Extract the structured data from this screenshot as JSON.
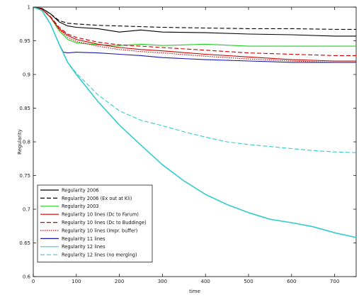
{
  "chart_data": {
    "type": "line",
    "title": "",
    "xlabel": "time",
    "ylabel": "Regularity",
    "xlim": [
      0,
      750
    ],
    "ylim": [
      0.6,
      1.0
    ],
    "xticks": [
      "0",
      "100",
      "200",
      "300",
      "400",
      "500",
      "600",
      "700"
    ],
    "yticks": [
      "0.6",
      "0.65",
      "0.7",
      "0.75",
      "0.8",
      "0.85",
      "0.9",
      "0.95",
      "1"
    ],
    "grid": false,
    "legend_position": "bottom-left",
    "series": [
      {
        "name": "Regularity 2006",
        "color": "#000000",
        "dash": "solid",
        "x": [
          0,
          20,
          40,
          60,
          80,
          100,
          150,
          200,
          250,
          300,
          400,
          500,
          600,
          700,
          750
        ],
        "y": [
          1.0,
          0.998,
          0.99,
          0.978,
          0.972,
          0.97,
          0.968,
          0.963,
          0.966,
          0.963,
          0.962,
          0.96,
          0.959,
          0.957,
          0.957
        ]
      },
      {
        "name": "Regularity 2006 (Ex out at Kli)",
        "color": "#000000",
        "dash": "dashed",
        "x": [
          0,
          20,
          40,
          60,
          80,
          100,
          150,
          200,
          250,
          300,
          400,
          500,
          600,
          700,
          750
        ],
        "y": [
          1.0,
          0.998,
          0.99,
          0.98,
          0.976,
          0.975,
          0.973,
          0.972,
          0.971,
          0.97,
          0.969,
          0.968,
          0.968,
          0.967,
          0.967
        ]
      },
      {
        "name": "Regularity 2003",
        "color": "#22cc22",
        "dash": "solid",
        "x": [
          0,
          20,
          40,
          60,
          80,
          100,
          150,
          200,
          250,
          300,
          400,
          500,
          600,
          700,
          750
        ],
        "y": [
          1.0,
          0.997,
          0.985,
          0.965,
          0.952,
          0.947,
          0.944,
          0.943,
          0.945,
          0.943,
          0.945,
          0.942,
          0.942,
          0.942,
          0.942
        ]
      },
      {
        "name": "Regularity 10 lines (Dc to Farum)",
        "color": "#cc0000",
        "dash": "solid",
        "x": [
          0,
          20,
          40,
          60,
          80,
          100,
          150,
          200,
          250,
          300,
          400,
          500,
          600,
          700,
          750
        ],
        "y": [
          1.0,
          0.997,
          0.985,
          0.968,
          0.958,
          0.952,
          0.945,
          0.94,
          0.937,
          0.935,
          0.93,
          0.926,
          0.922,
          0.92,
          0.92
        ]
      },
      {
        "name": "Regularity 10 lines (Dc to Buddinge)",
        "color": "#cc0000",
        "dash": "dashed",
        "x": [
          0,
          20,
          40,
          60,
          80,
          100,
          150,
          200,
          250,
          300,
          400,
          500,
          600,
          700,
          750
        ],
        "y": [
          1.0,
          0.997,
          0.986,
          0.97,
          0.96,
          0.955,
          0.948,
          0.944,
          0.942,
          0.94,
          0.936,
          0.932,
          0.93,
          0.928,
          0.928
        ]
      },
      {
        "name": "Regularity 10 lines (Impr. buffer)",
        "color": "#cc0000",
        "dash": "dotted",
        "x": [
          0,
          20,
          40,
          60,
          80,
          100,
          150,
          200,
          250,
          300,
          400,
          500,
          600,
          700,
          750
        ],
        "y": [
          1.0,
          0.997,
          0.985,
          0.967,
          0.955,
          0.949,
          0.942,
          0.937,
          0.934,
          0.932,
          0.927,
          0.923,
          0.92,
          0.918,
          0.918
        ]
      },
      {
        "name": "Regularity 11 lines",
        "color": "#1a1aaa",
        "dash": "solid",
        "x": [
          0,
          20,
          40,
          60,
          70,
          80,
          100,
          150,
          200,
          250,
          300,
          400,
          500,
          600,
          700,
          750
        ],
        "y": [
          1.0,
          0.995,
          0.975,
          0.945,
          0.933,
          0.932,
          0.933,
          0.932,
          0.93,
          0.928,
          0.925,
          0.922,
          0.92,
          0.918,
          0.918,
          0.918
        ]
      },
      {
        "name": "Regularity 12 lines",
        "color": "#33cccc",
        "dash": "solid",
        "x": [
          0,
          20,
          40,
          60,
          80,
          100,
          150,
          200,
          250,
          300,
          350,
          400,
          450,
          500,
          550,
          600,
          650,
          700,
          750
        ],
        "y": [
          1.0,
          0.995,
          0.975,
          0.945,
          0.918,
          0.9,
          0.86,
          0.825,
          0.795,
          0.766,
          0.742,
          0.722,
          0.707,
          0.695,
          0.685,
          0.68,
          0.674,
          0.665,
          0.658
        ]
      },
      {
        "name": "Regularity 12 lines (no merging)",
        "color": "#33cccc",
        "dash": "dashed",
        "x": [
          0,
          20,
          40,
          60,
          80,
          100,
          150,
          200,
          250,
          300,
          350,
          400,
          450,
          500,
          550,
          600,
          650,
          700,
          750
        ],
        "y": [
          1.0,
          0.995,
          0.975,
          0.945,
          0.918,
          0.902,
          0.87,
          0.846,
          0.832,
          0.824,
          0.815,
          0.807,
          0.8,
          0.796,
          0.793,
          0.79,
          0.787,
          0.785,
          0.784
        ]
      }
    ]
  }
}
